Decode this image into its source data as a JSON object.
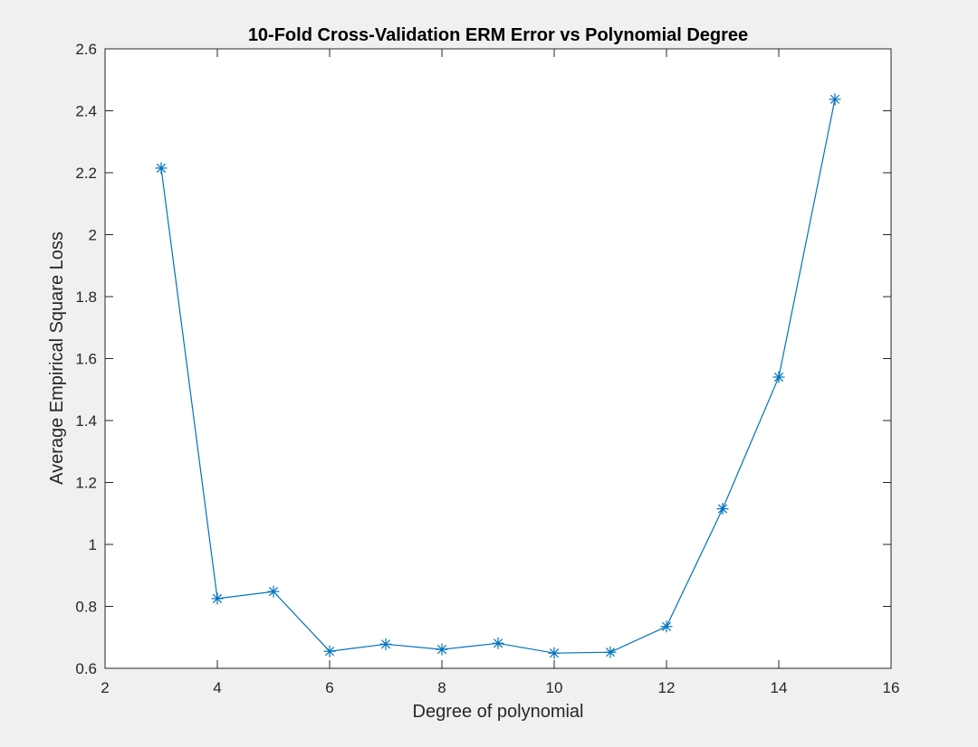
{
  "chart_data": {
    "type": "line",
    "title": "10-Fold Cross-Validation ERM Error vs Polynomial Degree",
    "xlabel": "Degree of polynomial",
    "ylabel": "Average Empirical Square Loss",
    "xlim": [
      2,
      16
    ],
    "ylim": [
      0.6,
      2.6
    ],
    "xticks": [
      2,
      4,
      6,
      8,
      10,
      12,
      14,
      16
    ],
    "yticks": [
      0.6,
      0.8,
      1,
      1.2,
      1.4,
      1.6,
      1.8,
      2,
      2.2,
      2.4,
      2.6
    ],
    "xtick_labels": [
      "2",
      "4",
      "6",
      "8",
      "10",
      "12",
      "14",
      "16"
    ],
    "ytick_labels": [
      "0.6",
      "0.8",
      "1",
      "1.2",
      "1.4",
      "1.6",
      "1.8",
      "2",
      "2.2",
      "2.4",
      "2.6"
    ],
    "grid": false,
    "marker": "asterisk",
    "color": "#0072bd",
    "series": [
      {
        "x": [
          3,
          4,
          5,
          6,
          7,
          8,
          9,
          10,
          11,
          12,
          13,
          14,
          15
        ],
        "values": [
          2.215,
          0.825,
          0.848,
          0.655,
          0.678,
          0.661,
          0.681,
          0.649,
          0.652,
          0.735,
          1.115,
          1.54,
          2.437
        ]
      }
    ]
  }
}
